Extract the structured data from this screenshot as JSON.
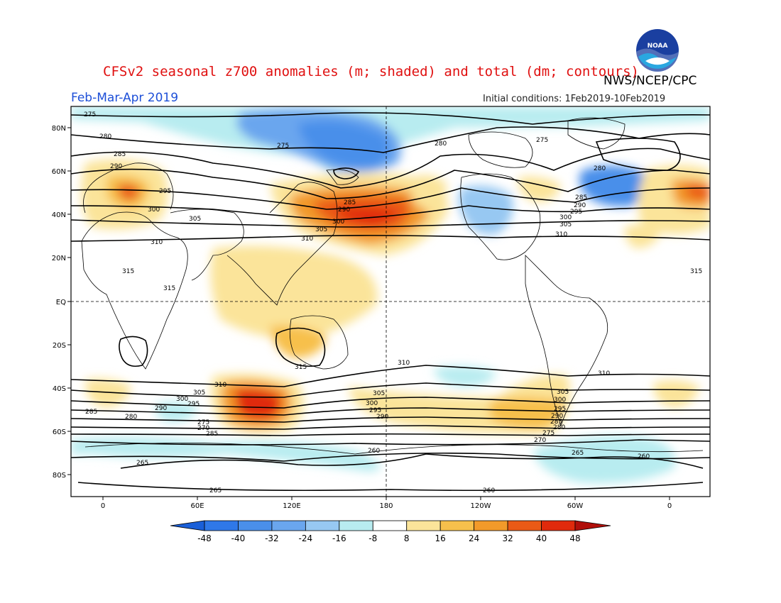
{
  "title": "CFSv2 seasonal z700 anomalies (m; shaded) and total (dm; contours)",
  "agency": "NWS/NCEP/CPC",
  "logo_text": "NOAA",
  "period": "Feb-Mar-Apr 2019",
  "initial_conditions": "Initial conditions: 1Feb2019-10Feb2019",
  "axes": {
    "lat_labels": [
      "80N",
      "60N",
      "40N",
      "20N",
      "EQ",
      "20S",
      "40S",
      "60S",
      "80S"
    ],
    "lon_labels": [
      "0",
      "60E",
      "120E",
      "180",
      "120W",
      "60W",
      "0"
    ]
  },
  "colorbar": {
    "labels": [
      "-48",
      "-40",
      "-32",
      "-24",
      "-16",
      "-8",
      "8",
      "16",
      "24",
      "32",
      "40",
      "48"
    ],
    "colors": [
      "#1a5fd8",
      "#2f78e8",
      "#4a8fea",
      "#6aa6ee",
      "#97c8f2",
      "#b8ecf0",
      "#ffffff",
      "#fbe49a",
      "#f7c04c",
      "#f29a2a",
      "#ea5a16",
      "#e02a0c",
      "#b00f0a"
    ]
  },
  "contour_labels": {
    "c275": "275",
    "c280": "280",
    "c285": "285",
    "c290": "290",
    "c295": "295",
    "c300": "300",
    "c305": "305",
    "c310": "310",
    "c315": "315",
    "c270": "270",
    "c265": "265",
    "c260": "260"
  }
}
